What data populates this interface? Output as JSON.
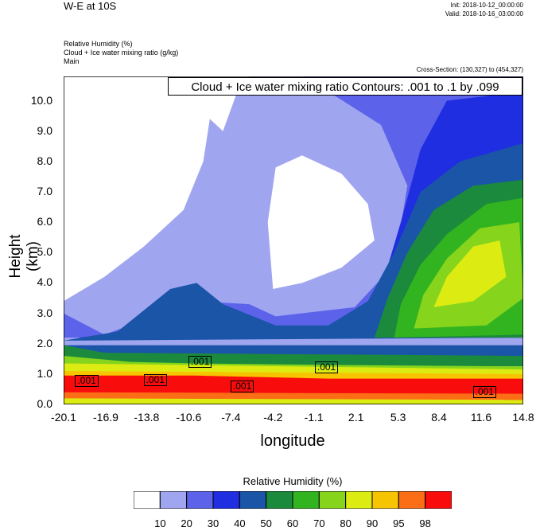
{
  "header": {
    "title": "W-E at 10S",
    "init": "Init: 2018-10-12_00:00:00",
    "valid": "Valid: 2018-10-16_03:00:00",
    "fields": [
      "Relative Humidity   (%)",
      "Cloud + Ice water mixing ratio   (g/kg)",
      "Main"
    ],
    "cross_section": "Cross-Section: (130,327) to (454,327)"
  },
  "chart_data": {
    "type": "heatmap",
    "title": "W-E at 10S",
    "contour_title": "Cloud + Ice water mixing ratio Contours: .001 to .1 by .099",
    "xlabel": "longitude",
    "ylabel": "Height (km)",
    "xticks": [
      "-20.1",
      "-16.9",
      "-13.8",
      "-10.6",
      "-7.4",
      "-4.2",
      "-1.1",
      "2.1",
      "5.3",
      "8.4",
      "11.6",
      "14.8"
    ],
    "yticks": [
      "0.0",
      "1.0",
      "2.0",
      "3.0",
      "4.0",
      "5.0",
      "6.0",
      "7.0",
      "8.0",
      "9.0",
      "10.0"
    ],
    "xlim": [
      -20.1,
      14.8
    ],
    "ylim": [
      0,
      10.8
    ],
    "contour_labels": [
      {
        "text": ".001",
        "x": -18.2,
        "y": 0.75
      },
      {
        "text": ".001",
        "x": -13.0,
        "y": 0.78
      },
      {
        "text": ".001",
        "x": -9.6,
        "y": 1.38
      },
      {
        "text": ".001",
        "x": -6.4,
        "y": 0.58
      },
      {
        "text": ".001",
        "x": 0.0,
        "y": 1.2
      },
      {
        "text": ".001",
        "x": 12.0,
        "y": 0.4
      }
    ],
    "colorbar": {
      "title": "Relative Humidity  (%)",
      "labels": [
        "10",
        "20",
        "30",
        "40",
        "50",
        "60",
        "70",
        "80",
        "90",
        "95",
        "98"
      ],
      "colors": [
        "#ffffff",
        "#a0a5f0",
        "#5c63ea",
        "#1f2ee0",
        "#1a55a8",
        "#1c8a3c",
        "#31b41f",
        "#86d41c",
        "#dcec13",
        "#f6c400",
        "#fb6e16",
        "#f80c0c"
      ]
    },
    "rh_field_description_levels": {
      "surface_layer_0_to_1km": 98,
      "layer_1_to_2km": 70,
      "mid_west_3_to_5km": 30,
      "east_upper_4_to_6km": 90,
      "west_upper_white_region": 10
    }
  }
}
